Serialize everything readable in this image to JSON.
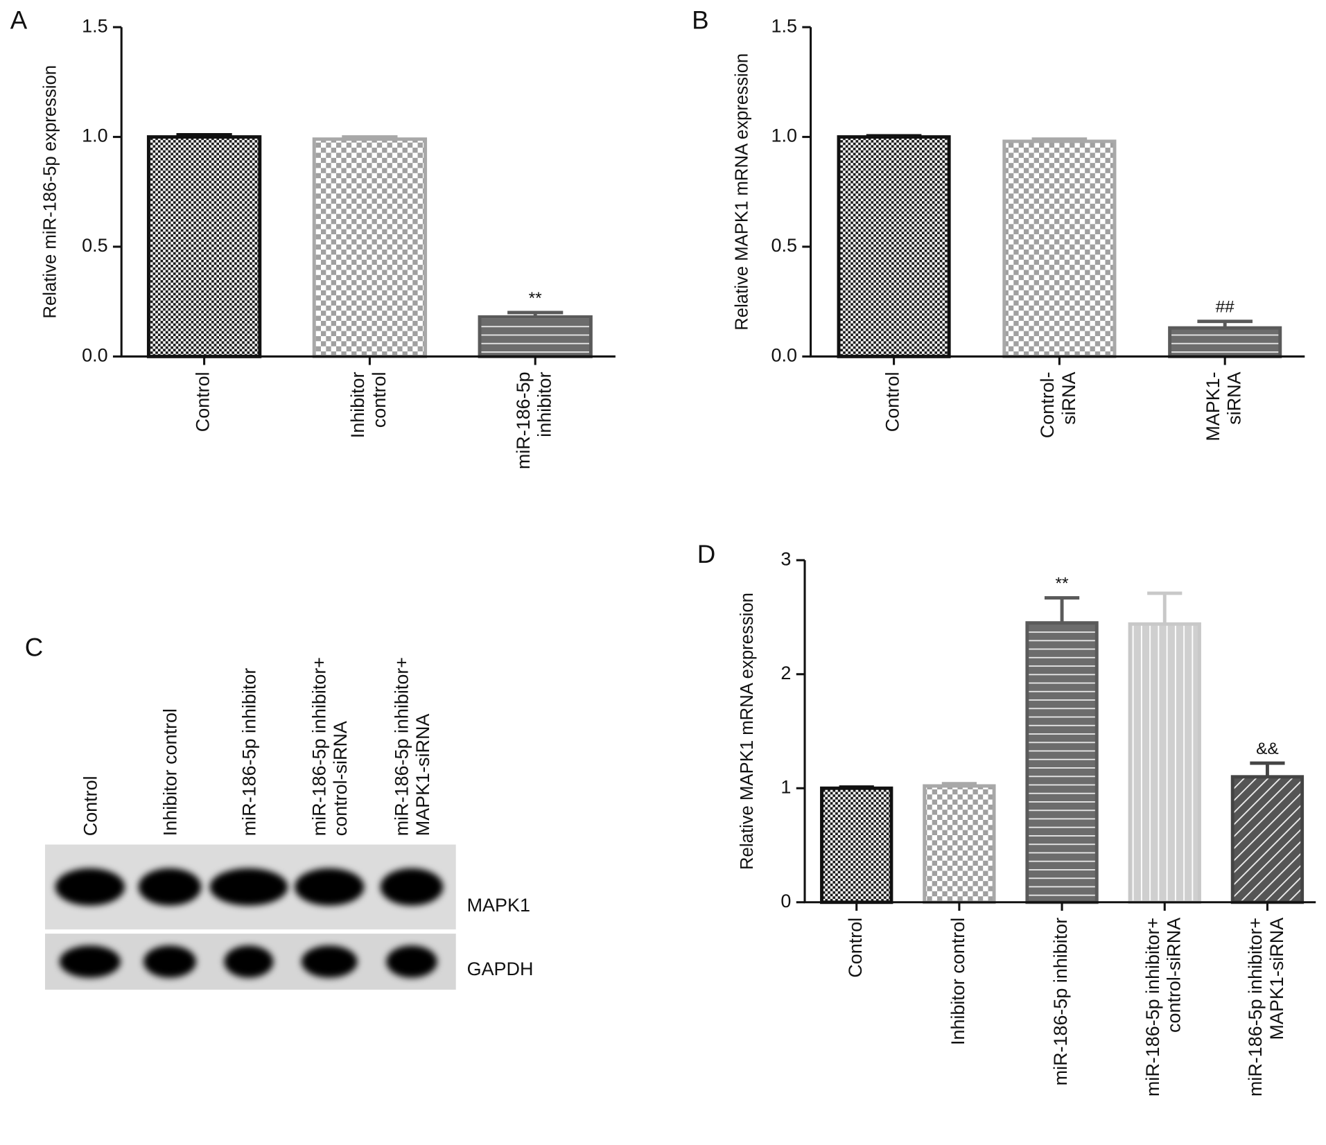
{
  "chart_data": [
    {
      "type": "bar",
      "panel": "A",
      "ylabel": "Relative miR-186-5p expression",
      "categories": [
        [
          "Control"
        ],
        [
          "Inhibitor",
          "control"
        ],
        [
          "miR-186-5p",
          "inhibitor"
        ]
      ],
      "values": [
        1.0,
        0.99,
        0.18
      ],
      "errors": [
        0.01,
        0.01,
        0.02
      ],
      "annotations": [
        null,
        null,
        "**"
      ],
      "colors": [
        "#111111",
        "#a8a8a8",
        "#5a5a5a"
      ],
      "patterns": [
        "checker-dark",
        "checker-light",
        "hlines"
      ],
      "ylim": [
        0,
        1.5
      ],
      "yticks": [
        {
          "value": 0,
          "label": "0.0"
        },
        {
          "value": 0.5,
          "label": "0.5"
        },
        {
          "value": 1.0,
          "label": "1.0"
        },
        {
          "value": 1.5,
          "label": "1.5"
        }
      ]
    },
    {
      "type": "bar",
      "panel": "B",
      "ylabel": "Relative MAPK1 mRNA expression",
      "categories": [
        [
          "Control"
        ],
        [
          "Control-",
          "siRNA"
        ],
        [
          "MAPK1-",
          "siRNA"
        ]
      ],
      "values": [
        1.0,
        0.98,
        0.13
      ],
      "errors": [
        0.005,
        0.01,
        0.03
      ],
      "annotations": [
        null,
        null,
        "##"
      ],
      "colors": [
        "#111111",
        "#a8a8a8",
        "#5a5a5a"
      ],
      "patterns": [
        "checker-dark",
        "checker-light",
        "hlines"
      ],
      "ylim": [
        0,
        1.5
      ],
      "yticks": [
        {
          "value": 0,
          "label": "0.0"
        },
        {
          "value": 0.5,
          "label": "0.5"
        },
        {
          "value": 1.0,
          "label": "1.0"
        },
        {
          "value": 1.5,
          "label": "1.5"
        }
      ]
    },
    {
      "type": "bar",
      "panel": "D",
      "ylabel": "Relative MAPK1 mRNA expression",
      "categories": [
        [
          "Control"
        ],
        [
          "Inhibitor control"
        ],
        [
          "miR-186-5p inhibitor"
        ],
        [
          "miR-186-5p inhibitor+",
          "control-siRNA"
        ],
        [
          "miR-186-5p inhibitor+",
          "MAPK1-siRNA"
        ]
      ],
      "values": [
        1.0,
        1.02,
        2.45,
        2.44,
        1.1
      ],
      "errors": [
        0.01,
        0.02,
        0.22,
        0.27,
        0.12
      ],
      "annotations": [
        null,
        null,
        "**",
        null,
        "&&"
      ],
      "colors": [
        "#111111",
        "#a8a8a8",
        "#5a5a5a",
        "#c8c8c8",
        "#444444"
      ],
      "patterns": [
        "checker-dark",
        "checker-light",
        "hlines",
        "vlines",
        "diag"
      ],
      "ylim": [
        0,
        3
      ],
      "yticks": [
        0,
        1,
        2,
        3
      ]
    }
  ],
  "blot": {
    "panel": "C",
    "lanes": [
      [
        "Control"
      ],
      [
        "Inhibitor control"
      ],
      [
        "miR-186-5p inhibitor"
      ],
      [
        "miR-186-5p inhibitor+",
        "control-siRNA"
      ],
      [
        "miR-186-5p inhibitor+",
        "MAPK1-siRNA"
      ]
    ],
    "proteins": [
      "MAPK1",
      "GAPDH"
    ]
  }
}
